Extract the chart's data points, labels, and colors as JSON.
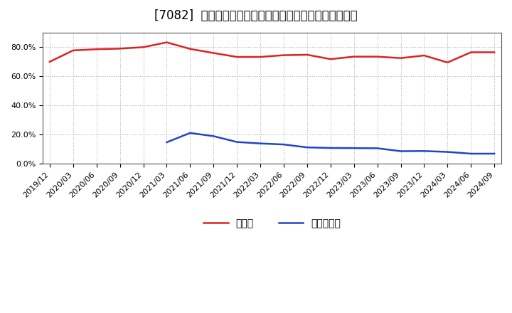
{
  "title": "[7082]  現預金、有利子負債の総資産に対する比率の推移",
  "x_labels": [
    "2019/12",
    "2020/03",
    "2020/06",
    "2020/09",
    "2020/12",
    "2021/03",
    "2021/06",
    "2021/09",
    "2021/12",
    "2022/03",
    "2022/06",
    "2022/09",
    "2022/12",
    "2023/03",
    "2023/06",
    "2023/09",
    "2023/12",
    "2024/03",
    "2024/06",
    "2024/09"
  ],
  "cash_ratio": [
    0.7,
    0.778,
    0.786,
    0.79,
    0.8,
    0.833,
    0.788,
    0.76,
    0.733,
    0.733,
    0.745,
    0.748,
    0.718,
    0.735,
    0.735,
    0.725,
    0.743,
    0.695,
    0.765,
    0.765
  ],
  "debt_ratio": [
    null,
    null,
    null,
    null,
    null,
    0.148,
    0.212,
    0.19,
    0.15,
    0.14,
    0.133,
    0.113,
    0.109,
    0.108,
    0.107,
    0.087,
    0.088,
    0.082,
    0.07,
    0.07
  ],
  "cash_color": "#dd2222",
  "debt_color": "#2244cc",
  "background_color": "#ffffff",
  "plot_bg_color": "#ffffff",
  "grid_color": "#aaaaaa",
  "ylim": [
    0.0,
    0.9
  ],
  "yticks": [
    0.0,
    0.2,
    0.4,
    0.6,
    0.8
  ],
  "legend_cash": "現預金",
  "legend_debt": "有利子負債",
  "title_fontsize": 12,
  "tick_fontsize": 8,
  "legend_fontsize": 10
}
